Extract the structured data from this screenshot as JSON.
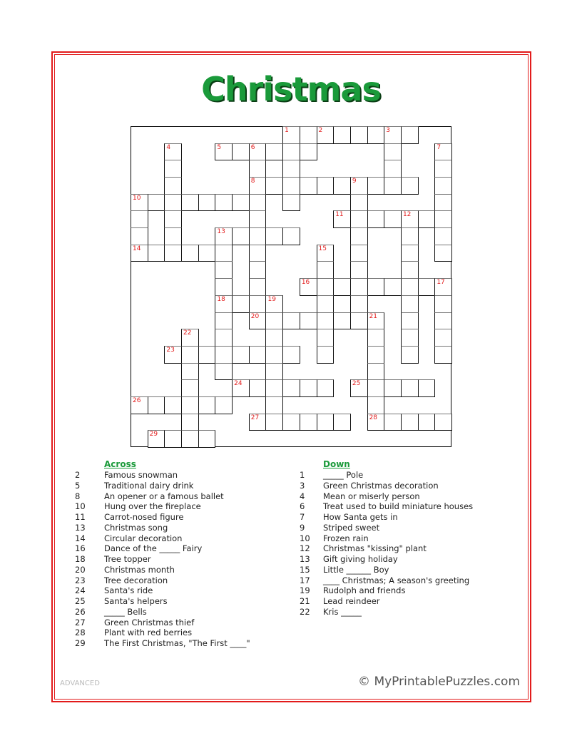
{
  "title": "Christmas",
  "level": "ADVANCED",
  "copyright": "© MyPrintablePuzzles.com",
  "colors": {
    "border": "#e21b1b",
    "title": "#1a9a3a",
    "numbers": "#e21b1b",
    "headings": "#1a9a3a"
  },
  "grid": [
    ".........########..",
    "..#..######....#..#",
    "..#....#.#.....#..#",
    "..#....##########.#",
    "########.#...#....#",
    "#.#....#....#######",
    "#.#..#####...#..#.#",
    "######.#...#.#..#.#",
    ".....#.#...#.#..#..",
    ".....#.#..#########",
    ".....####..#.#..#.#",
    ".....#.########.#.#",
    "...#.#..#..#..#.#.#",
    "..########.#..#.#.#",
    "...#.#..#.....#....",
    "...#..######.#####.",
    "######..#.....#....",
    "...#...######.#####",
    ".####.............."
  ],
  "numbers": [
    {
      "n": "1",
      "r": 0,
      "c": 9
    },
    {
      "n": "2",
      "r": 0,
      "c": 11
    },
    {
      "n": "3",
      "r": 0,
      "c": 15
    },
    {
      "n": "4",
      "r": 1,
      "c": 2
    },
    {
      "n": "5",
      "r": 1,
      "c": 5
    },
    {
      "n": "6",
      "r": 1,
      "c": 7
    },
    {
      "n": "7",
      "r": 1,
      "c": 18
    },
    {
      "n": "8",
      "r": 3,
      "c": 7
    },
    {
      "n": "9",
      "r": 3,
      "c": 13
    },
    {
      "n": "10",
      "r": 4,
      "c": 0
    },
    {
      "n": "11",
      "r": 5,
      "c": 12
    },
    {
      "n": "12",
      "r": 5,
      "c": 16
    },
    {
      "n": "13",
      "r": 6,
      "c": 5
    },
    {
      "n": "14",
      "r": 7,
      "c": 0
    },
    {
      "n": "15",
      "r": 7,
      "c": 11
    },
    {
      "n": "16",
      "r": 9,
      "c": 10
    },
    {
      "n": "17",
      "r": 9,
      "c": 18
    },
    {
      "n": "18",
      "r": 10,
      "c": 5
    },
    {
      "n": "19",
      "r": 10,
      "c": 8
    },
    {
      "n": "20",
      "r": 11,
      "c": 7
    },
    {
      "n": "21",
      "r": 11,
      "c": 14
    },
    {
      "n": "22",
      "r": 12,
      "c": 3
    },
    {
      "n": "23",
      "r": 13,
      "c": 2
    },
    {
      "n": "24",
      "r": 15,
      "c": 6
    },
    {
      "n": "25",
      "r": 15,
      "c": 13
    },
    {
      "n": "26",
      "r": 16,
      "c": 0
    },
    {
      "n": "27",
      "r": 17,
      "c": 7
    },
    {
      "n": "28",
      "r": 17,
      "c": 14
    },
    {
      "n": "29",
      "r": 18,
      "c": 1
    }
  ],
  "across": {
    "heading": "Across",
    "clues": [
      {
        "n": "2",
        "text": "Famous snowman"
      },
      {
        "n": "5",
        "text": "Traditional dairy drink"
      },
      {
        "n": "8",
        "text": "An opener or a famous ballet"
      },
      {
        "n": "10",
        "text": "Hung over the fireplace"
      },
      {
        "n": "11",
        "text": "Carrot-nosed figure"
      },
      {
        "n": "13",
        "text": "Christmas song"
      },
      {
        "n": "14",
        "text": "Circular decoration"
      },
      {
        "n": "16",
        "text": "Dance of the _____ Fairy"
      },
      {
        "n": "18",
        "text": "Tree topper"
      },
      {
        "n": "20",
        "text": "Christmas month"
      },
      {
        "n": "23",
        "text": "Tree decoration"
      },
      {
        "n": "24",
        "text": "Santa's ride"
      },
      {
        "n": "25",
        "text": "Santa's helpers"
      },
      {
        "n": "26",
        "text": "_____ Bells"
      },
      {
        "n": "27",
        "text": "Green Christmas thief"
      },
      {
        "n": "28",
        "text": "Plant with red berries"
      },
      {
        "n": "29",
        "text": "The First Christmas, \"The First ____\""
      }
    ]
  },
  "down": {
    "heading": "Down",
    "clues": [
      {
        "n": "1",
        "text": "_____ Pole"
      },
      {
        "n": "3",
        "text": "Green Christmas decoration"
      },
      {
        "n": "4",
        "text": "Mean or miserly person"
      },
      {
        "n": "6",
        "text": "Treat used to build miniature houses"
      },
      {
        "n": "7",
        "text": "How Santa gets in"
      },
      {
        "n": "9",
        "text": "Striped sweet"
      },
      {
        "n": "10",
        "text": "Frozen rain"
      },
      {
        "n": "12",
        "text": "Christmas \"kissing\" plant"
      },
      {
        "n": "13",
        "text": "Gift giving holiday"
      },
      {
        "n": "15",
        "text": "Little ______ Boy"
      },
      {
        "n": "17",
        "text": "____ Christmas; A season's greeting"
      },
      {
        "n": "19",
        "text": "Rudolph and friends"
      },
      {
        "n": "21",
        "text": "Lead reindeer"
      },
      {
        "n": "22",
        "text": "Kris _____"
      }
    ]
  }
}
